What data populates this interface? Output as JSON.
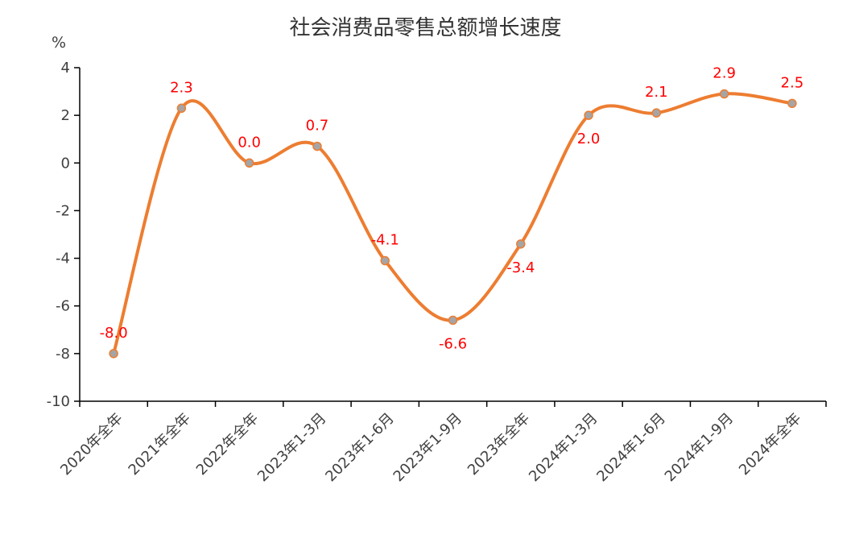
{
  "chart_data": {
    "type": "line",
    "title": "社会消费品零售总额增长速度",
    "ylabel": "%",
    "xlabel": "",
    "categories": [
      "2020年全年",
      "2021年全年",
      "2022年全年",
      "2023年1-3月",
      "2023年1-6月",
      "2023年1-9月",
      "2023年全年",
      "2024年1-3月",
      "2024年1-6月",
      "2024年1-9月",
      "2024年全年"
    ],
    "series": [
      {
        "values": [
          -8.0,
          2.3,
          0.0,
          0.7,
          -4.1,
          -6.6,
          -3.4,
          2.0,
          2.1,
          2.9,
          2.5
        ],
        "data_labels": [
          "-8.0",
          "2.3",
          "0.0",
          "0.7",
          "-4.1",
          "-6.6",
          "-3.4",
          "2.0",
          "2.1",
          "2.9",
          "2.5"
        ]
      }
    ],
    "ylim": [
      -10,
      4
    ],
    "yticks": [
      4,
      2,
      0,
      -2,
      -4,
      -6,
      -8,
      -10
    ],
    "ytick_labels": [
      "4",
      "2",
      "0",
      "-2",
      "-4",
      "-6",
      "-8",
      "-10"
    ],
    "smooth": true,
    "grid": false,
    "legend": "none",
    "colors": {
      "line": "#ED7D31",
      "marker_fill": "#A5A5A5",
      "data_label": "#FF0000",
      "axis": "#000000",
      "tick_text": "#404040"
    },
    "label_positions": [
      "above",
      "above",
      "above",
      "above",
      "above",
      "below",
      "below",
      "below",
      "above",
      "above",
      "above"
    ]
  }
}
